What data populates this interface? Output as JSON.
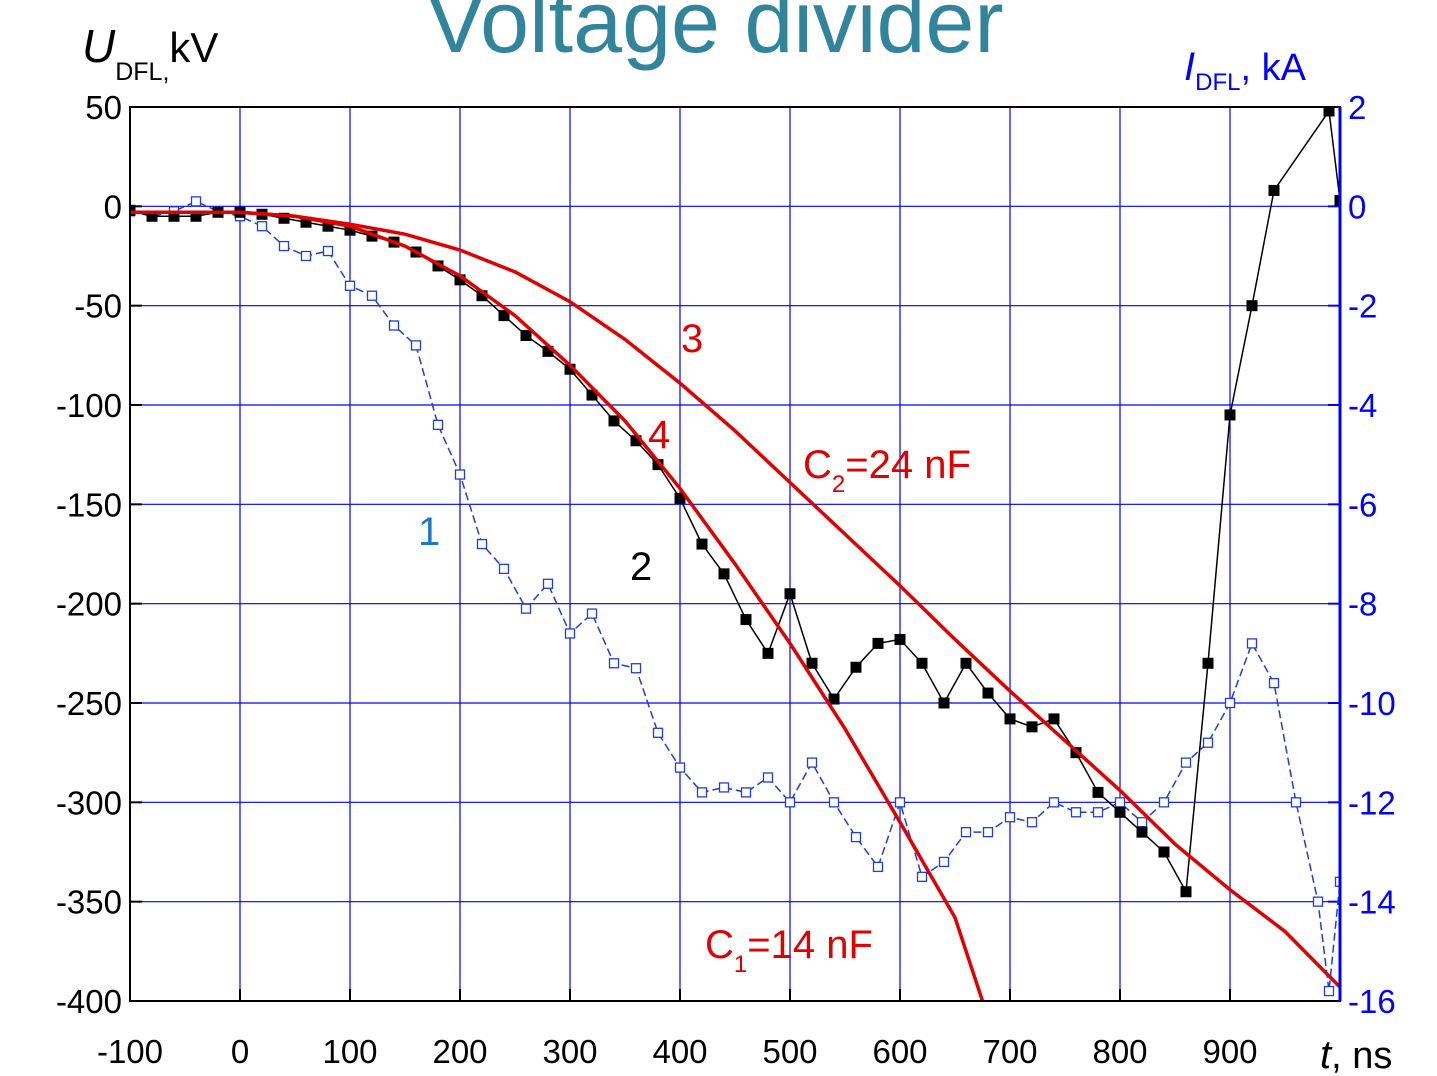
{
  "chart_data": {
    "type": "scatter",
    "title": "Voltage divider",
    "y_label": {
      "var": "U",
      "sub": "DFL,",
      "unit": "kV"
    },
    "y2_label": {
      "var": "I",
      "sub": "DFL",
      "unit": ", kA"
    },
    "x_label": {
      "var": "t",
      "unit": ", ns"
    },
    "xlim": [
      -100,
      1000
    ],
    "xticks": [
      -100,
      0,
      100,
      200,
      300,
      400,
      500,
      600,
      700,
      800,
      900
    ],
    "ylim": [
      -400,
      50
    ],
    "yticks": [
      50,
      0,
      -50,
      -100,
      -150,
      -200,
      -250,
      -300,
      -350,
      -400
    ],
    "y2lim": [
      -16,
      2
    ],
    "y2ticks": [
      2,
      0,
      -2,
      -4,
      -6,
      -8,
      -10,
      -12,
      -14,
      -16
    ],
    "grid": true,
    "grid_color": "#0000ff",
    "y2_color": "#0000ff",
    "series": [
      {
        "name": "1",
        "color": "#1f3fd0",
        "marker": "open-square",
        "line": "dash",
        "axis": "y2",
        "x": [
          -100,
          -80,
          -60,
          -40,
          -20,
          0,
          20,
          40,
          60,
          80,
          100,
          120,
          140,
          160,
          180,
          200,
          220,
          240,
          260,
          280,
          300,
          320,
          340,
          360,
          380,
          400,
          420,
          440,
          460,
          480,
          500,
          520,
          540,
          560,
          580,
          600,
          620,
          640,
          660,
          680,
          700,
          720,
          740,
          760,
          780,
          800,
          820,
          840,
          860,
          880,
          900,
          920,
          940,
          960,
          980,
          990,
          1000
        ],
        "values": [
          -0.1,
          -0.2,
          -0.1,
          0.1,
          -0.1,
          -0.2,
          -0.4,
          -0.8,
          -1.0,
          -0.9,
          -1.6,
          -1.8,
          -2.4,
          -2.8,
          -4.4,
          -5.4,
          -6.8,
          -7.3,
          -8.1,
          -7.6,
          -8.6,
          -8.2,
          -9.2,
          -9.3,
          -10.6,
          -11.3,
          -11.8,
          -11.7,
          -11.8,
          -11.5,
          -12.0,
          -11.2,
          -12.0,
          -12.7,
          -13.3,
          -12.0,
          -13.5,
          -13.2,
          -12.6,
          -12.6,
          -12.3,
          -12.4,
          -12.0,
          -12.2,
          -12.2,
          -12.0,
          -12.4,
          -12.0,
          -11.2,
          -10.8,
          -10.0,
          -8.8,
          -9.6,
          -12.0,
          -14.0,
          -15.8,
          -13.6
        ]
      },
      {
        "name": "2",
        "color": "#000000",
        "marker": "filled-square",
        "line": "solid",
        "x": [
          -100,
          -80,
          -60,
          -40,
          -20,
          0,
          20,
          40,
          60,
          80,
          100,
          120,
          140,
          160,
          180,
          200,
          220,
          240,
          260,
          280,
          300,
          320,
          340,
          360,
          380,
          400,
          420,
          440,
          460,
          480,
          500,
          520,
          540,
          560,
          580,
          600,
          620,
          640,
          660,
          680,
          700,
          720,
          740,
          760,
          780,
          800,
          820,
          840,
          860,
          880,
          900,
          920,
          940,
          990,
          1000
        ],
        "values": [
          -2,
          -5,
          -5,
          -5,
          -3,
          -3,
          -4,
          -6,
          -8,
          -10,
          -12,
          -15,
          -18,
          -23,
          -30,
          -37,
          -45,
          -55,
          -65,
          -73,
          -82,
          -95,
          -108,
          -118,
          -130,
          -147,
          -170,
          -185,
          -208,
          -225,
          -195,
          -230,
          -248,
          -232,
          -220,
          -218,
          -230,
          -250,
          -230,
          -245,
          -258,
          -262,
          -258,
          -275,
          -295,
          -305,
          -315,
          -325,
          -345,
          -230,
          -105,
          -50,
          8,
          48,
          3
        ]
      },
      {
        "name": "3",
        "color": "#e00000",
        "marker": "none",
        "line": "solid",
        "x": [
          -100,
          -50,
          0,
          50,
          100,
          150,
          200,
          250,
          300,
          350,
          400,
          450,
          500,
          550,
          600,
          650,
          700,
          750,
          800,
          850,
          900,
          950,
          1000
        ],
        "values": [
          -3,
          -3,
          -3,
          -5,
          -9,
          -14,
          -22,
          -33,
          -48,
          -67,
          -89,
          -113,
          -139,
          -165,
          -191,
          -218,
          -244,
          -269,
          -294,
          -321,
          -344,
          -365,
          -393
        ]
      },
      {
        "name": "4",
        "color": "#e00000",
        "marker": "none",
        "line": "solid",
        "x": [
          -100,
          -50,
          0,
          50,
          100,
          150,
          200,
          250,
          300,
          350,
          400,
          450,
          500,
          550,
          600,
          650,
          675
        ],
        "values": [
          -3,
          -3,
          -3,
          -5,
          -10,
          -20,
          -35,
          -55,
          -80,
          -108,
          -142,
          -180,
          -220,
          -263,
          -310,
          -358,
          -400
        ]
      }
    ],
    "annotations": [
      {
        "text": "1",
        "color": "#1f78c8"
      },
      {
        "text": "2",
        "color": "#000000"
      },
      {
        "text": "3",
        "color": "#e00000"
      },
      {
        "text": "4",
        "color": "#e00000"
      },
      {
        "var": "C",
        "sub": "2",
        "rest": "=24 nF",
        "color": "#e00000"
      },
      {
        "var": "C",
        "sub": "1",
        "rest": "=14 nF",
        "color": "#e00000"
      }
    ]
  }
}
